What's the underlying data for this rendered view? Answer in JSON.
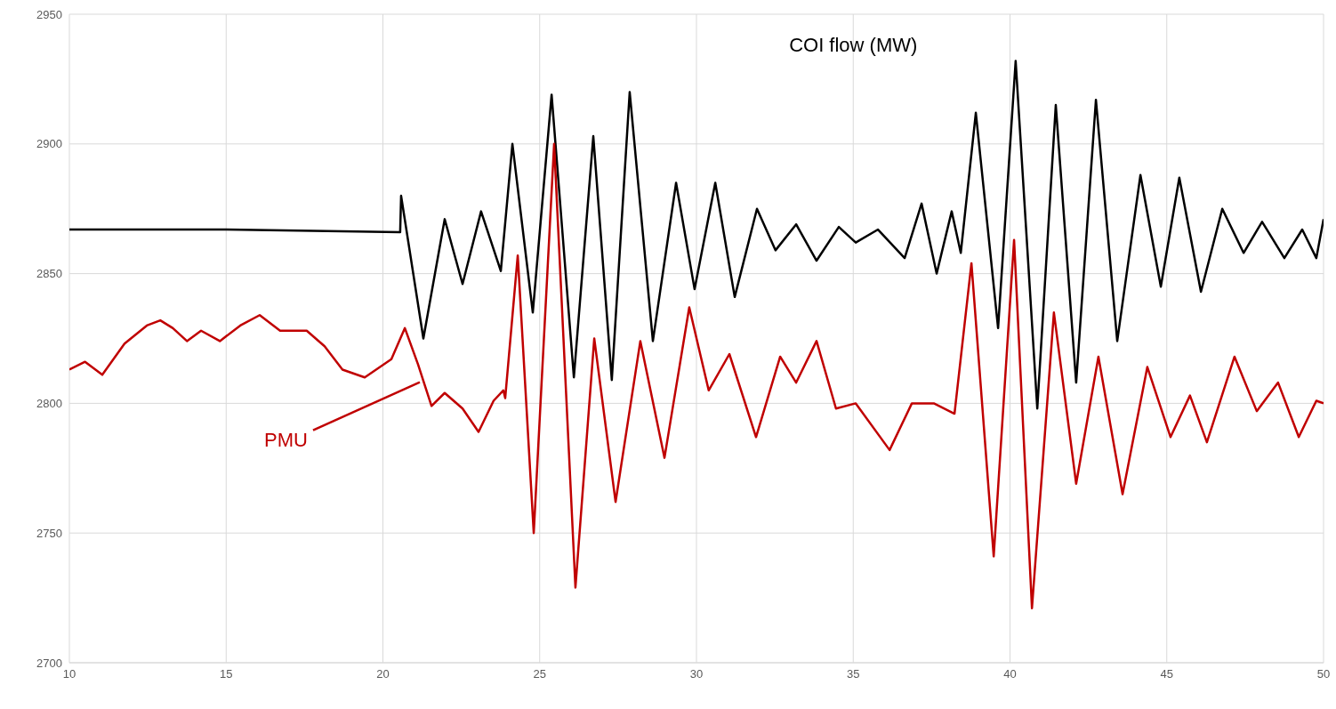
{
  "chart_data": {
    "type": "line",
    "title": "COI flow (MW)",
    "xlim": [
      10,
      50
    ],
    "xticks": [
      10,
      15,
      20,
      25,
      30,
      35,
      40,
      45,
      50
    ],
    "ylim": [
      2700,
      2950
    ],
    "yticks": [
      2700,
      2750,
      2800,
      2850,
      2900,
      2950
    ],
    "grid": true,
    "marker": "none",
    "line_style": "solid",
    "series": [
      {
        "color": "#000000",
        "x": [
          10,
          15,
          20.55,
          20.58,
          21.29,
          21.97,
          22.54,
          23.13,
          23.76,
          24.13,
          24.78,
          25.38,
          26.09,
          26.71,
          27.3,
          27.87,
          28.61,
          29.35,
          29.94,
          30.6,
          31.22,
          31.93,
          32.52,
          33.18,
          33.83,
          34.54,
          35.08,
          35.79,
          36.64,
          37.18,
          37.66,
          38.14,
          38.43,
          38.91,
          39.62,
          40.18,
          40.87,
          41.46,
          42.11,
          42.74,
          43.42,
          44.16,
          44.81,
          45.4,
          46.09,
          46.77,
          47.45,
          48.04,
          48.75,
          49.32,
          49.77,
          50
        ],
        "values": [
          2867,
          2867,
          2866,
          2880,
          2825,
          2871,
          2846,
          2874,
          2851,
          2900,
          2835,
          2919,
          2810,
          2903,
          2809,
          2920,
          2824,
          2885,
          2844,
          2885,
          2841,
          2875,
          2859,
          2869,
          2855,
          2868,
          2862,
          2867,
          2856,
          2877,
          2850,
          2874,
          2858,
          2912,
          2829,
          2932,
          2798,
          2915,
          2808,
          2917,
          2824,
          2888,
          2845,
          2887,
          2843,
          2875,
          2858,
          2870,
          2856,
          2867,
          2856,
          2871
        ]
      },
      {
        "name": "PMU",
        "color": "#c00000",
        "x": [
          10,
          10.5,
          11.05,
          11.76,
          12.47,
          12.9,
          13.3,
          13.75,
          14.2,
          14.8,
          15.45,
          16.07,
          16.72,
          17.57,
          18.14,
          18.71,
          19.42,
          20.27,
          20.7,
          21.12,
          21.55,
          21.97,
          22.54,
          23.05,
          23.53,
          23.84,
          23.9,
          24.3,
          24.81,
          25.46,
          26.14,
          26.74,
          27.42,
          28.21,
          28.98,
          29.77,
          30.39,
          31.05,
          31.9,
          32.67,
          33.18,
          33.83,
          34.45,
          35.08,
          36.16,
          36.87,
          37.57,
          38.23,
          38.77,
          39.48,
          40.13,
          40.7,
          41.4,
          42.11,
          42.82,
          43.59,
          44.38,
          45.12,
          45.74,
          46.28,
          47.16,
          47.87,
          48.55,
          49.21,
          49.77,
          50
        ],
        "values": [
          2813,
          2816,
          2811,
          2823,
          2830,
          2832,
          2829,
          2824,
          2828,
          2824,
          2830,
          2834,
          2828,
          2828,
          2822,
          2813,
          2810,
          2817,
          2829,
          2815,
          2799,
          2804,
          2798,
          2789,
          2801,
          2805,
          2802,
          2857,
          2750,
          2900,
          2729,
          2825,
          2762,
          2824,
          2779,
          2837,
          2805,
          2819,
          2787,
          2818,
          2808,
          2824,
          2798,
          2800,
          2782,
          2800,
          2800,
          2796,
          2854,
          2741,
          2863,
          2721,
          2835,
          2769,
          2818,
          2765,
          2814,
          2787,
          2803,
          2785,
          2818,
          2797,
          2808,
          2787,
          2801,
          2800
        ]
      }
    ]
  }
}
